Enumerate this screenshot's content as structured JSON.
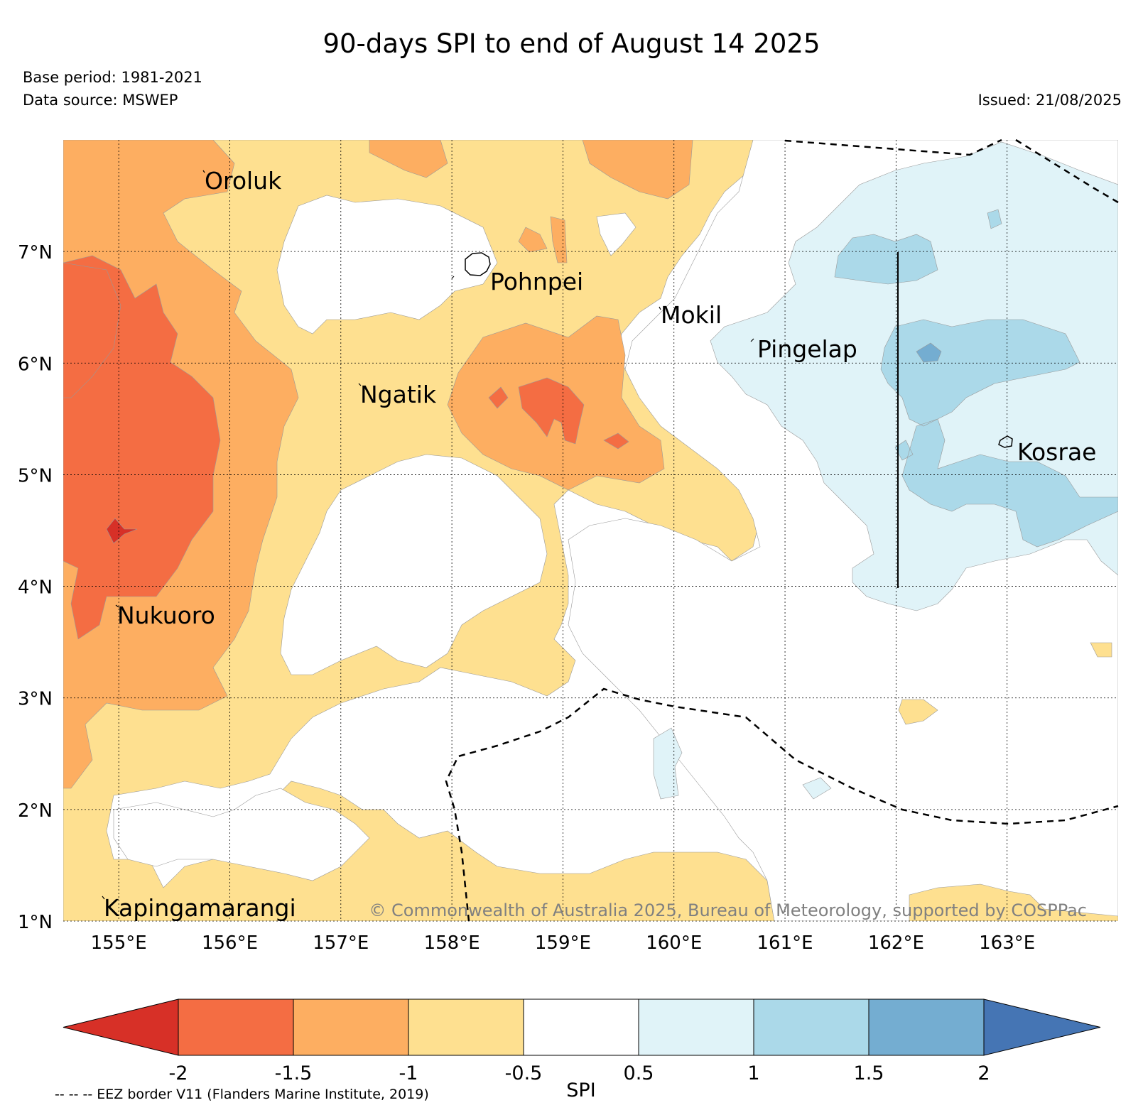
{
  "title": "90-days SPI to end of August 14 2025",
  "base_period": "Base period: 1981-2021",
  "data_source": "Data source: MSWEP",
  "issued": "Issued: 21/08/2025",
  "copyright": "© Commonwealth of Australia 2025, Bureau of Meteorology, supported by COSPPac",
  "eez_note": "-- -- -- EEZ border V11 (Flanders Marine Institute, 2019)",
  "map": {
    "lon_range": [
      154.5,
      164.0
    ],
    "lat_range": [
      1.0,
      8.0
    ],
    "lon_ticks": [
      "155°E",
      "156°E",
      "157°E",
      "158°E",
      "159°E",
      "160°E",
      "161°E",
      "162°E",
      "163°E"
    ],
    "lat_ticks": [
      "1°N",
      "2°N",
      "3°N",
      "4°N",
      "5°N",
      "6°N",
      "7°N"
    ],
    "grid": "dotted",
    "places": [
      "Oroluk",
      "Pohnpei",
      "Mokil",
      "Pingelap",
      "Ngatik",
      "Kosrae",
      "Nukuoro",
      "Kapingamarangi"
    ]
  },
  "colorbar": {
    "label": "SPI",
    "ticks": [
      "-2",
      "-1.5",
      "-1",
      "-0.5",
      "0.5",
      "1",
      "1.5",
      "2"
    ],
    "colors": {
      "below_-2": "#d73027",
      "-2_to_-1.5": "#f46d43",
      "-1.5_to_-1": "#fdae61",
      "-1_to_-0.5": "#fee090",
      "-0.5_to_0.5": "#ffffff",
      "0.5_to_1": "#e0f3f8",
      "1_to_1.5": "#abd9e9",
      "1.5_to_2": "#74add1",
      "above_2": "#4575b4"
    }
  }
}
